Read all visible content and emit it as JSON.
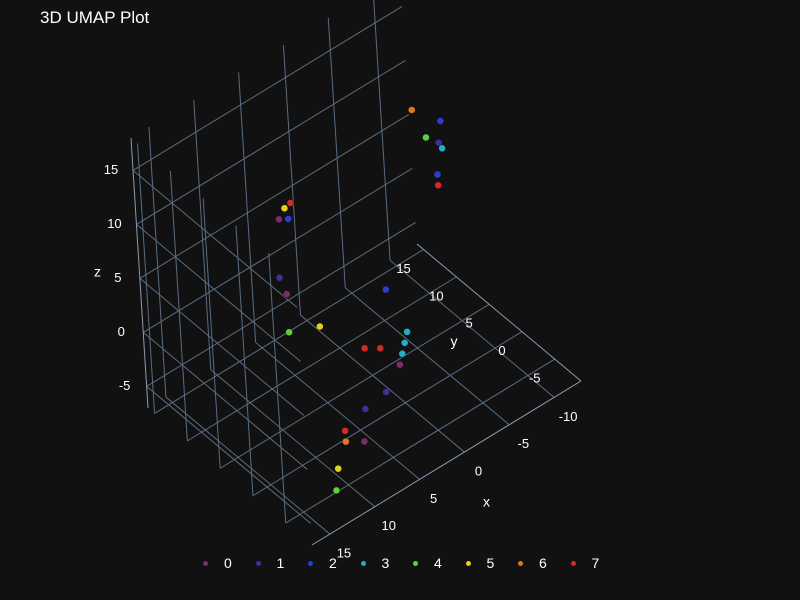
{
  "chart_data": {
    "type": "scatter3d",
    "title": "3D UMAP Plot",
    "axes": {
      "x": {
        "label": "x",
        "ticks": [
          -10,
          -5,
          0,
          5,
          10,
          15
        ],
        "range": [
          -13,
          17
        ]
      },
      "y": {
        "label": "y",
        "ticks": [
          -5,
          0,
          5,
          10,
          15
        ],
        "range": [
          -9,
          16
        ]
      },
      "z": {
        "label": "z",
        "ticks": [
          -5,
          0,
          5,
          10,
          15
        ],
        "range": [
          -7,
          18
        ]
      }
    },
    "grid": true,
    "legend_position": "bottom",
    "series": [
      {
        "name": "0",
        "color": "#7b2d6b",
        "points": [
          [
            8,
            -5,
            -4
          ],
          [
            4,
            12,
            -1
          ],
          [
            9,
            5,
            12
          ],
          [
            -1,
            2,
            -5
          ]
        ]
      },
      {
        "name": "1",
        "color": "#4a2a9a",
        "points": [
          [
            7,
            -4,
            -2
          ],
          [
            4,
            13,
            0
          ],
          [
            -8,
            4,
            11
          ],
          [
            2,
            0,
            -5
          ]
        ]
      },
      {
        "name": "2",
        "color": "#2a3fd0",
        "points": [
          [
            2,
            -1,
            5
          ],
          [
            6,
            8,
            9
          ],
          [
            -9,
            5,
            12
          ],
          [
            -11,
            9,
            4
          ]
        ]
      },
      {
        "name": "3",
        "color": "#1fb0c8",
        "points": [
          [
            -2,
            3,
            -5
          ],
          [
            -3,
            4,
            -5
          ],
          [
            -4,
            5,
            -5
          ],
          [
            -7,
            2,
            12
          ]
        ]
      },
      {
        "name": "4",
        "color": "#5fd03a",
        "points": [
          [
            12,
            -6,
            -6
          ],
          [
            6,
            9,
            -2
          ],
          [
            -6,
            3,
            13
          ]
        ]
      },
      {
        "name": "5",
        "color": "#e6d21a",
        "points": [
          [
            11,
            -5,
            -5
          ],
          [
            2,
            10,
            -4
          ],
          [
            7,
            7,
            11
          ]
        ]
      },
      {
        "name": "6",
        "color": "#e07a1a",
        "points": [
          [
            10,
            -5,
            -3
          ],
          [
            -8,
            8,
            12
          ]
        ]
      },
      {
        "name": "7",
        "color": "#d42a2a",
        "points": [
          [
            10,
            -5,
            -2
          ],
          [
            0,
            6,
            -5
          ],
          [
            -1,
            5,
            -5
          ],
          [
            7,
            6,
            12
          ],
          [
            -11,
            9,
            3
          ]
        ]
      }
    ]
  }
}
